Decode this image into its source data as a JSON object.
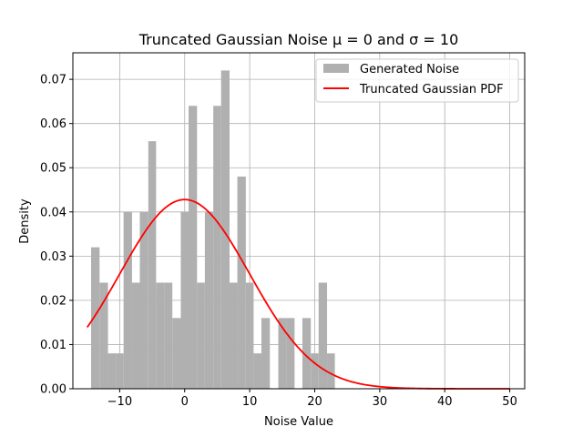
{
  "chart_data": {
    "type": "bar",
    "title": "Truncated Gaussian Noise μ = 0 and σ = 10",
    "xlabel": "Noise Value",
    "ylabel": "Density",
    "xlim": [
      -17.2,
      52.3
    ],
    "ylim": [
      0,
      0.076
    ],
    "xticks": [
      -10,
      0,
      10,
      20,
      30,
      40,
      50
    ],
    "xtick_labels": [
      "−10",
      "0",
      "10",
      "20",
      "30",
      "40",
      "50"
    ],
    "yticks": [
      0.0,
      0.01,
      0.02,
      0.03,
      0.04,
      0.05,
      0.06,
      0.07
    ],
    "ytick_labels": [
      "0.00",
      "0.01",
      "0.02",
      "0.03",
      "0.04",
      "0.05",
      "0.06",
      "0.07"
    ],
    "grid": true,
    "legend_position": "top-right",
    "histogram": {
      "name": "Generated Noise",
      "color": "#b0b0b0",
      "bins": [
        {
          "x0": -14.4,
          "x1": -13.1,
          "y": 0.032
        },
        {
          "x0": -13.1,
          "x1": -11.8,
          "y": 0.024
        },
        {
          "x0": -11.8,
          "x1": -10.6,
          "y": 0.008
        },
        {
          "x0": -10.6,
          "x1": -9.4,
          "y": 0.008
        },
        {
          "x0": -9.4,
          "x1": -8.1,
          "y": 0.04
        },
        {
          "x0": -8.1,
          "x1": -6.9,
          "y": 0.024
        },
        {
          "x0": -6.9,
          "x1": -5.6,
          "y": 0.04
        },
        {
          "x0": -5.6,
          "x1": -4.4,
          "y": 0.056
        },
        {
          "x0": -4.4,
          "x1": -3.1,
          "y": 0.024
        },
        {
          "x0": -3.1,
          "x1": -1.9,
          "y": 0.024
        },
        {
          "x0": -1.9,
          "x1": -0.6,
          "y": 0.016
        },
        {
          "x0": -0.6,
          "x1": 0.6,
          "y": 0.04
        },
        {
          "x0": 0.6,
          "x1": 1.9,
          "y": 0.064
        },
        {
          "x0": 1.9,
          "x1": 3.1,
          "y": 0.024
        },
        {
          "x0": 3.1,
          "x1": 4.4,
          "y": 0.04
        },
        {
          "x0": 4.4,
          "x1": 5.6,
          "y": 0.064
        },
        {
          "x0": 5.6,
          "x1": 6.9,
          "y": 0.072
        },
        {
          "x0": 6.9,
          "x1": 8.1,
          "y": 0.024
        },
        {
          "x0": 8.1,
          "x1": 9.4,
          "y": 0.048
        },
        {
          "x0": 9.4,
          "x1": 10.6,
          "y": 0.024
        },
        {
          "x0": 10.6,
          "x1": 11.8,
          "y": 0.008
        },
        {
          "x0": 11.8,
          "x1": 13.1,
          "y": 0.016
        },
        {
          "x0": 14.4,
          "x1": 15.6,
          "y": 0.016
        },
        {
          "x0": 15.6,
          "x1": 16.9,
          "y": 0.016
        },
        {
          "x0": 18.1,
          "x1": 19.4,
          "y": 0.016
        },
        {
          "x0": 19.4,
          "x1": 20.6,
          "y": 0.008
        },
        {
          "x0": 20.6,
          "x1": 21.9,
          "y": 0.024
        },
        {
          "x0": 21.9,
          "x1": 23.1,
          "y": 0.008
        }
      ]
    },
    "curve": {
      "name": "Truncated Gaussian PDF",
      "color": "#ff0000",
      "mu": 0,
      "sigma": 10,
      "x_range": [
        -15,
        50
      ],
      "peak_density": 0.0428
    }
  }
}
